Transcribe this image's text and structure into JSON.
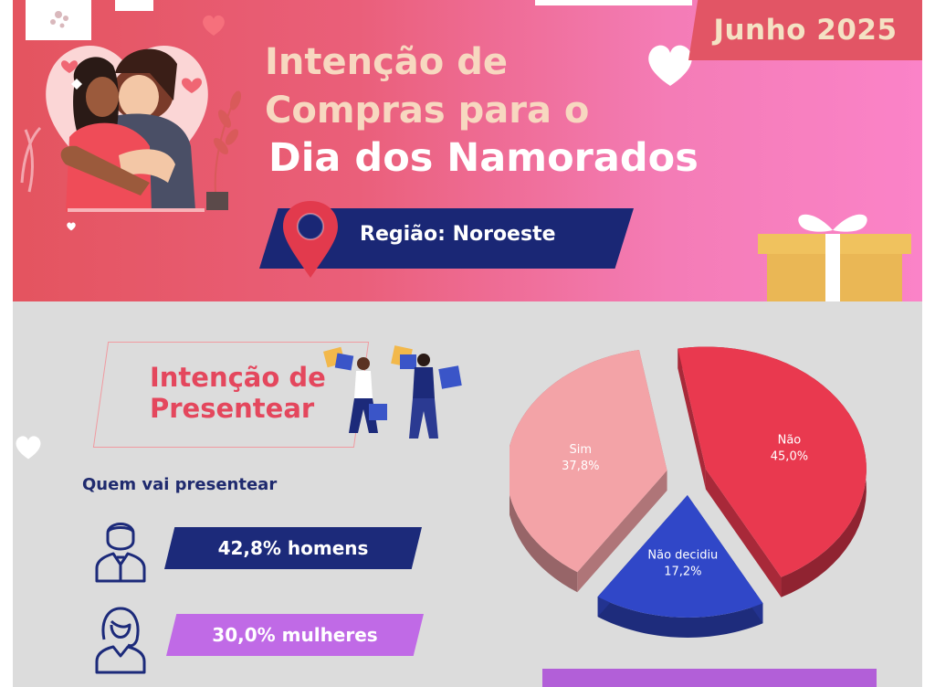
{
  "header": {
    "date": "Junho 2025",
    "title_line1": "Intenção de",
    "title_line2": "Compras para o",
    "title_line3": "Dia dos Namorados",
    "region": "Região: Noroeste"
  },
  "section": {
    "title_line1": "Intenção de",
    "title_line2": "Presentear",
    "subheading": "Quem vai presentear",
    "stats": [
      {
        "label": "42,8% homens",
        "icon": "man-avatar-icon"
      },
      {
        "label": "30,0% mulheres",
        "icon": "woman-avatar-icon"
      }
    ]
  },
  "colors": {
    "header_red": "#e4545f",
    "header_pink": "#fb83c8",
    "navy": "#1a2775",
    "purple": "#c06ae6",
    "section_title": "#e4475d",
    "slice_sim": "#f3a3a7",
    "slice_nao": "#e9394f",
    "slice_nao_decidiu": "#3047c8"
  },
  "chart_data": {
    "type": "pie",
    "categories": [
      "Sim",
      "Não",
      "Não decidiu"
    ],
    "values": [
      37.8,
      45.0,
      17.2
    ],
    "value_labels": [
      "37,8%",
      "45,0%",
      "17,2%"
    ],
    "colors": [
      "#f3a3a7",
      "#e9394f",
      "#3047c8"
    ],
    "title": "",
    "legend": "none"
  }
}
